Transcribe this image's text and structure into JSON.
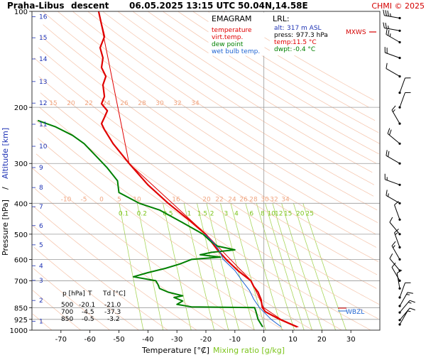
{
  "header": {
    "station": "Praha-Libus",
    "mode": "descent",
    "datetime": "06.05.2025 13:15 UTC",
    "coords": "50.04N,14.58E",
    "brand": "CHMI © 2025"
  },
  "legend": {
    "title": "EMAGRAM",
    "items": [
      {
        "label": "temperature",
        "color": "#e00000"
      },
      {
        "label": "virt.temp.",
        "color": "#e00000"
      },
      {
        "label": "dew point",
        "color": "#008000"
      },
      {
        "label": "wet bulb temp.",
        "color": "#1e64d2"
      }
    ]
  },
  "lrl": {
    "title": "LRL:",
    "alt_label": "alt:",
    "alt": "317 m ASL",
    "press_label": "press:",
    "press": "977.3 hPa",
    "temp_label": "temp:",
    "temp": "11.5 °C",
    "dwpt_label": "dwpt:",
    "dwpt": "-0.4 °C"
  },
  "markers": {
    "mxws": "MXWS",
    "wbzl": "WBZL"
  },
  "table": {
    "headers": [
      "p [hPa]",
      "T",
      "Td [°C]"
    ],
    "rows": [
      [
        "500",
        "-20.1",
        "-21.0"
      ],
      [
        "700",
        "-4.5",
        "-37.3"
      ],
      [
        "850",
        "-0.5",
        "-3.2"
      ]
    ]
  },
  "chart_data": {
    "type": "line",
    "title": "EMAGRAM",
    "xlabel": "Temperature [°C]",
    "xlabel_sep": "/",
    "xlabel2": "Mixing ratio [g/kg]",
    "ylabel": "Pressure [hPa]",
    "ylabel_sep": "/",
    "ylabel2": "Altitude [km]",
    "xlim": [
      -80,
      40
    ],
    "ylim": [
      1000,
      100
    ],
    "log_y": true,
    "grid": true,
    "x_ticks": [
      -70,
      -60,
      -50,
      -40,
      -30,
      -20,
      -10,
      0,
      10,
      20,
      30
    ],
    "x_tick_labels": [
      "-70",
      "-60",
      "-50",
      "-40",
      "-30",
      "-20",
      "-10",
      "0",
      "10",
      "20",
      "30"
    ],
    "y_ticks": [
      100,
      200,
      300,
      400,
      500,
      600,
      700,
      850,
      925,
      1000
    ],
    "y_tick_labels": [
      "100",
      "200",
      "300",
      "400",
      "500",
      "600",
      "700",
      "850",
      "925",
      "1000"
    ],
    "altitude_km_ticks": [
      {
        "label": "1",
        "p": 938
      },
      {
        "label": "2",
        "p": 807
      },
      {
        "label": "3",
        "p": 698
      },
      {
        "label": "4",
        "p": 628
      },
      {
        "label": "5",
        "p": 540
      },
      {
        "label": "6",
        "p": 470
      },
      {
        "label": "7",
        "p": 410
      },
      {
        "label": "8",
        "p": 357
      },
      {
        "label": "9",
        "p": 309
      },
      {
        "label": "10",
        "p": 265
      },
      {
        "label": "11",
        "p": 226
      },
      {
        "label": "12",
        "p": 194
      },
      {
        "label": "13",
        "p": 166
      },
      {
        "label": "14",
        "p": 141
      },
      {
        "label": "15",
        "p": 121
      },
      {
        "label": "16",
        "p": 104
      }
    ],
    "mixing_ratio_labels": [
      "0.1",
      "0.2",
      "0.5",
      "1",
      "1.5",
      "2",
      "3",
      "4",
      "6",
      "8",
      "10",
      "12",
      "15",
      "20",
      "25"
    ],
    "dry_adiabat_labels_upper": [
      "15",
      "20",
      "22",
      "24",
      "26",
      "28",
      "30",
      "32",
      "34"
    ],
    "dry_adiabat_labels_lower": [
      "-10",
      "-5",
      "0",
      "5",
      "10",
      "16",
      "20",
      "22",
      "24",
      "26",
      "28",
      "30",
      "32",
      "34"
    ],
    "series": [
      {
        "name": "temperature",
        "color": "#e00000",
        "points": [
          {
            "p": 977,
            "t": 11.5
          },
          {
            "p": 960,
            "t": 9.5
          },
          {
            "p": 925,
            "t": 5.5
          },
          {
            "p": 900,
            "t": 3.0
          },
          {
            "p": 875,
            "t": 0.5
          },
          {
            "p": 850,
            "t": -0.5
          },
          {
            "p": 800,
            "t": -1.0
          },
          {
            "p": 780,
            "t": -1.5
          },
          {
            "p": 760,
            "t": -2.0
          },
          {
            "p": 730,
            "t": -3.5
          },
          {
            "p": 700,
            "t": -4.5
          },
          {
            "p": 650,
            "t": -9.0
          },
          {
            "p": 600,
            "t": -13.0
          },
          {
            "p": 560,
            "t": -16.0
          },
          {
            "p": 500,
            "t": -20.1
          },
          {
            "p": 450,
            "t": -26.0
          },
          {
            "p": 400,
            "t": -33.0
          },
          {
            "p": 350,
            "t": -40.0
          },
          {
            "p": 300,
            "t": -46.5
          },
          {
            "p": 260,
            "t": -52.0
          },
          {
            "p": 235,
            "t": -55.0
          },
          {
            "p": 225,
            "t": -56.0
          },
          {
            "p": 215,
            "t": -55.0
          },
          {
            "p": 205,
            "t": -54.0
          },
          {
            "p": 195,
            "t": -56.0
          },
          {
            "p": 185,
            "t": -55.0
          },
          {
            "p": 170,
            "t": -55.5
          },
          {
            "p": 160,
            "t": -54.5
          },
          {
            "p": 150,
            "t": -56.0
          },
          {
            "p": 140,
            "t": -55.5
          },
          {
            "p": 130,
            "t": -56.5
          },
          {
            "p": 120,
            "t": -55.0
          },
          {
            "p": 110,
            "t": -56.0
          },
          {
            "p": 100,
            "t": -57.0
          }
        ]
      },
      {
        "name": "virt.temp.",
        "color": "#e00000",
        "points": [
          {
            "p": 977,
            "t": 11.9
          },
          {
            "p": 925,
            "t": 5.9
          },
          {
            "p": 850,
            "t": -0.1
          },
          {
            "p": 700,
            "t": -4.4
          },
          {
            "p": 500,
            "t": -20.0
          },
          {
            "p": 300,
            "t": -46.5
          },
          {
            "p": 100,
            "t": -57.0
          }
        ]
      },
      {
        "name": "dew point",
        "color": "#008000",
        "points": [
          {
            "p": 977,
            "t": -0.4
          },
          {
            "p": 925,
            "t": -2.0
          },
          {
            "p": 870,
            "t": -2.8
          },
          {
            "p": 850,
            "t": -3.2
          },
          {
            "p": 845,
            "t": -25.0
          },
          {
            "p": 830,
            "t": -30.0
          },
          {
            "p": 810,
            "t": -28.0
          },
          {
            "p": 790,
            "t": -31.0
          },
          {
            "p": 780,
            "t": -28.0
          },
          {
            "p": 760,
            "t": -33.0
          },
          {
            "p": 740,
            "t": -36.0
          },
          {
            "p": 720,
            "t": -36.5
          },
          {
            "p": 700,
            "t": -37.3
          },
          {
            "p": 680,
            "t": -45.0
          },
          {
            "p": 660,
            "t": -40.0
          },
          {
            "p": 640,
            "t": -34.0
          },
          {
            "p": 620,
            "t": -29.0
          },
          {
            "p": 600,
            "t": -25.0
          },
          {
            "p": 590,
            "t": -15.0
          },
          {
            "p": 580,
            "t": -22.0
          },
          {
            "p": 570,
            "t": -18.0
          },
          {
            "p": 560,
            "t": -10.0
          },
          {
            "p": 545,
            "t": -16.0
          },
          {
            "p": 530,
            "t": -18.0
          },
          {
            "p": 500,
            "t": -21.0
          },
          {
            "p": 460,
            "t": -28.0
          },
          {
            "p": 420,
            "t": -36.0
          },
          {
            "p": 400,
            "t": -43.0
          },
          {
            "p": 370,
            "t": -50.0
          },
          {
            "p": 340,
            "t": -50.5
          },
          {
            "p": 310,
            "t": -54.0
          },
          {
            "p": 290,
            "t": -57.0
          },
          {
            "p": 260,
            "t": -62.0
          },
          {
            "p": 245,
            "t": -66.0
          },
          {
            "p": 230,
            "t": -72.0
          },
          {
            "p": 220,
            "t": -78.0
          }
        ]
      },
      {
        "name": "wet bulb temp.",
        "color": "#1e64d2",
        "points": [
          {
            "p": 977,
            "t": 6.0
          },
          {
            "p": 925,
            "t": 2.5
          },
          {
            "p": 850,
            "t": -1.5
          },
          {
            "p": 800,
            "t": -3.5
          },
          {
            "p": 750,
            "t": -5.0
          },
          {
            "p": 700,
            "t": -7.5
          },
          {
            "p": 650,
            "t": -10.0
          },
          {
            "p": 600,
            "t": -14.0
          },
          {
            "p": 560,
            "t": -15.5
          },
          {
            "p": 530,
            "t": -17.5
          },
          {
            "p": 500,
            "t": -20.5
          }
        ]
      }
    ],
    "wind_barbs": [
      {
        "p": 960,
        "dir": 30,
        "spd": 5
      },
      {
        "p": 930,
        "dir": 40,
        "spd": 10
      },
      {
        "p": 880,
        "dir": 40,
        "spd": 15
      },
      {
        "p": 840,
        "dir": 30,
        "spd": 15
      },
      {
        "p": 790,
        "dir": 20,
        "spd": 10
      },
      {
        "p": 740,
        "dir": 350,
        "spd": 10
      },
      {
        "p": 700,
        "dir": 330,
        "spd": 10
      },
      {
        "p": 650,
        "dir": 320,
        "spd": 10
      },
      {
        "p": 600,
        "dir": 330,
        "spd": 15
      },
      {
        "p": 550,
        "dir": 340,
        "spd": 15
      },
      {
        "p": 500,
        "dir": 320,
        "spd": 10
      },
      {
        "p": 450,
        "dir": 340,
        "spd": 10
      },
      {
        "p": 400,
        "dir": 300,
        "spd": 15
      },
      {
        "p": 350,
        "dir": 290,
        "spd": 15
      },
      {
        "p": 300,
        "dir": 300,
        "spd": 20
      },
      {
        "p": 260,
        "dir": 310,
        "spd": 20
      },
      {
        "p": 225,
        "dir": 330,
        "spd": 15
      },
      {
        "p": 200,
        "dir": 20,
        "spd": 10
      },
      {
        "p": 180,
        "dir": 20,
        "spd": 10
      },
      {
        "p": 160,
        "dir": 300,
        "spd": 10
      },
      {
        "p": 140,
        "dir": 290,
        "spd": 20
      },
      {
        "p": 125,
        "dir": 300,
        "spd": 25
      },
      {
        "p": 115,
        "dir": 280,
        "spd": 25
      },
      {
        "p": 105,
        "dir": 280,
        "spd": 35
      }
    ]
  }
}
